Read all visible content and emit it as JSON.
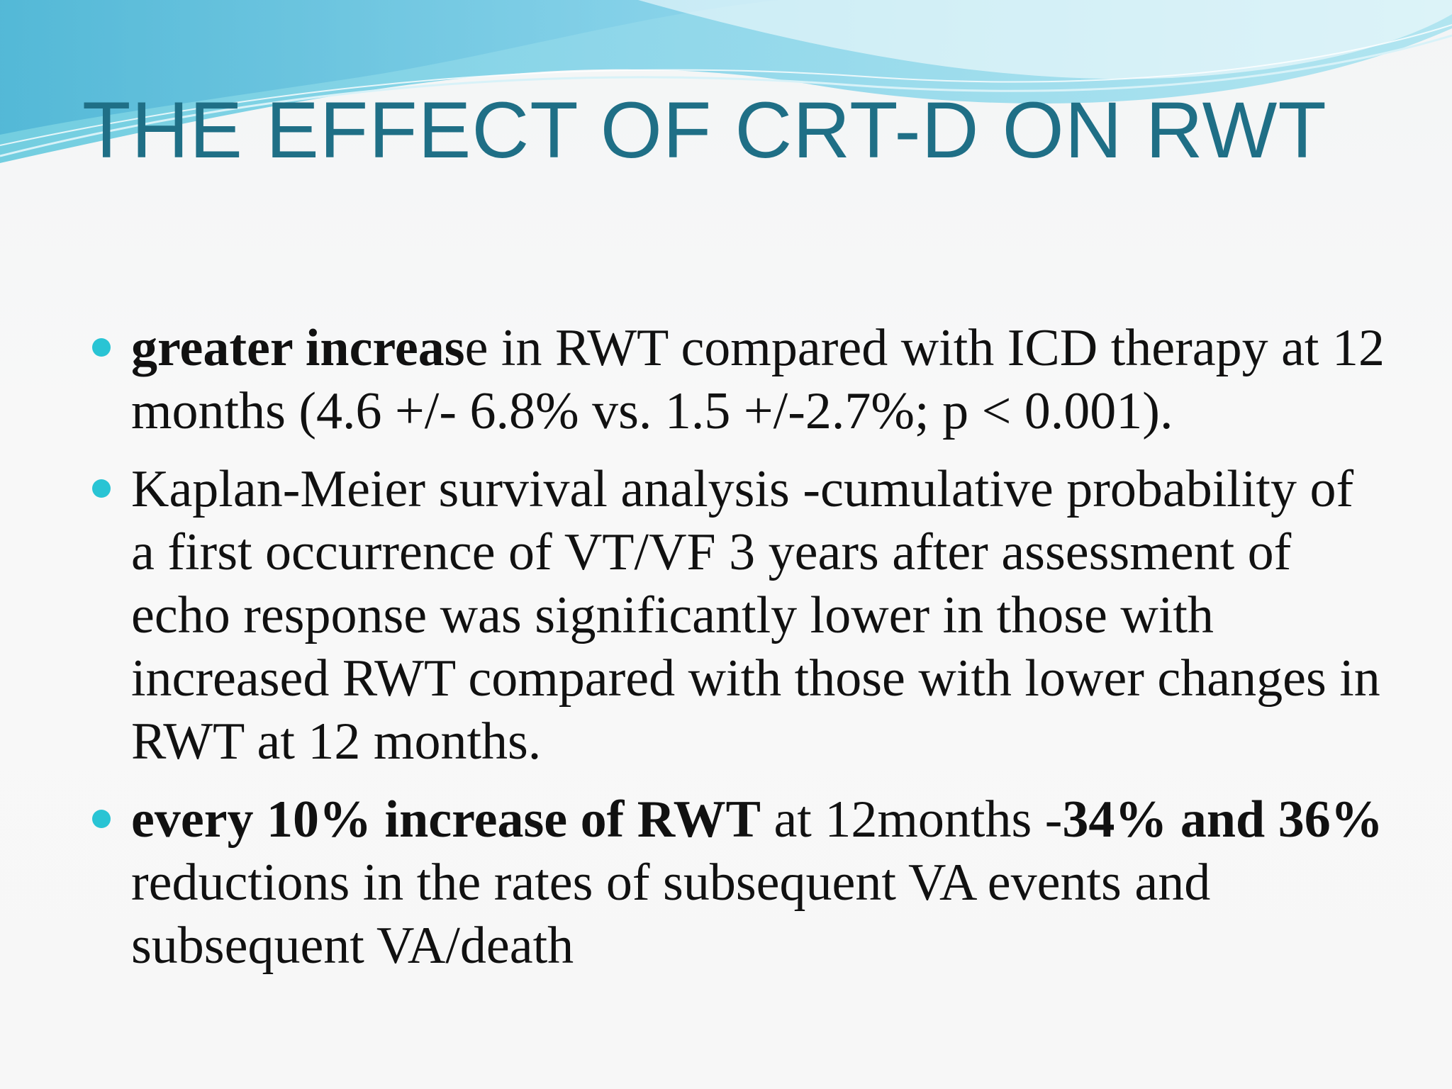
{
  "slide": {
    "title": "THE EFFECT OF CRT-D ON RWT",
    "colors": {
      "title": "#1f6f86",
      "bullet": "#29c4d4",
      "wave_dark": "#4fb6d8",
      "wave_light": "#9fe0ef"
    },
    "bullets": [
      {
        "segments": [
          {
            "text": "greater increas",
            "bold": true
          },
          {
            "text": "e in RWT compared with ICD therapy at 12 months (4.6 +/- 6.8% vs. 1.5 +/-2.7%; p < 0.001).",
            "bold": false
          }
        ]
      },
      {
        "segments": [
          {
            "text": "Kaplan-Meier survival analysis -cumulative probability of a first occurrence of VT/VF 3 years after assessment of echo response was significantly lower in those with increased RWT compared with those with lower changes in RWT at 12 months.",
            "bold": false
          }
        ]
      },
      {
        "segments": [
          {
            "text": "every 10% increase of RWT",
            "bold": true
          },
          {
            "text": " at 12months -",
            "bold": false
          },
          {
            "text": "34% and 36%",
            "bold": true
          },
          {
            "text": " reductions in the rates of subsequent VA events and subsequent VA/death",
            "bold": false
          }
        ]
      }
    ]
  }
}
